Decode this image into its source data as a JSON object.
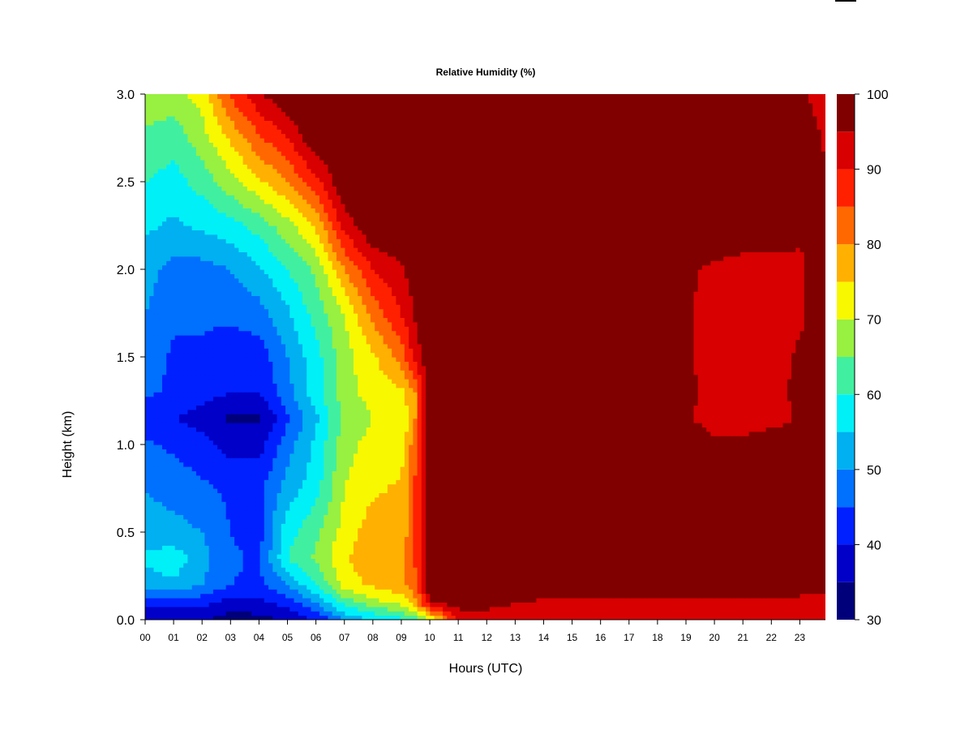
{
  "chart_data": {
    "type": "heatmap",
    "title": "Relative Humidity (%)",
    "xlabel": "Hours (UTC)",
    "ylabel": "Height (km)",
    "xlim": [
      0,
      23.9
    ],
    "ylim": [
      0.0,
      3.0
    ],
    "x_ticks": [
      "00",
      "01",
      "02",
      "03",
      "04",
      "05",
      "06",
      "07",
      "08",
      "09",
      "10",
      "11",
      "12",
      "13",
      "14",
      "15",
      "16",
      "17",
      "18",
      "19",
      "20",
      "21",
      "22",
      "23"
    ],
    "y_ticks": [
      "0.0",
      "0.5",
      "1.0",
      "1.5",
      "2.0",
      "2.5",
      "3.0"
    ],
    "colorbar": {
      "label": "",
      "range": [
        30,
        100
      ],
      "levels": [
        30,
        35,
        40,
        45,
        50,
        55,
        60,
        65,
        70,
        75,
        80,
        85,
        90,
        95,
        100
      ],
      "tick_labels": [
        "30",
        "40",
        "50",
        "60",
        "70",
        "80",
        "90",
        "100"
      ],
      "colors": [
        "#00007a",
        "#0000c8",
        "#0020ff",
        "#0070ff",
        "#00b0f0",
        "#00f0f8",
        "#40f0a0",
        "#98f040",
        "#f8f800",
        "#ffb000",
        "#ff6800",
        "#ff2000",
        "#d80000",
        "#800000"
      ]
    },
    "heights_km": [
      0.0,
      0.1,
      0.2,
      0.35,
      0.5,
      0.75,
      1.0,
      1.15,
      1.3,
      1.5,
      1.75,
      2.0,
      2.25,
      2.5,
      2.75,
      3.0
    ],
    "hours": [
      0,
      1,
      2,
      3,
      4,
      5,
      6,
      7,
      8,
      9,
      9.5,
      10,
      11,
      12,
      13,
      14,
      15,
      16,
      17,
      18,
      19,
      20,
      21,
      22,
      23,
      23.9
    ],
    "rh_percent": [
      [
        35,
        35,
        36,
        32,
        33,
        36,
        40,
        50,
        55,
        58,
        62,
        70,
        90,
        92,
        92,
        92,
        92,
        92,
        92,
        92,
        92,
        92,
        92,
        92,
        92,
        92
      ],
      [
        42,
        41,
        42,
        38,
        39,
        42,
        50,
        62,
        68,
        72,
        78,
        95,
        98,
        97,
        95,
        94,
        93,
        92,
        92,
        92,
        92,
        92,
        92,
        92,
        92,
        92
      ],
      [
        52,
        54,
        50,
        45,
        44,
        50,
        60,
        72,
        76,
        78,
        84,
        100,
        100,
        100,
        100,
        100,
        100,
        100,
        100,
        100,
        100,
        100,
        100,
        100,
        100,
        98
      ],
      [
        56,
        58,
        52,
        46,
        44,
        60,
        66,
        74,
        80,
        78,
        86,
        100,
        100,
        100,
        100,
        100,
        100,
        100,
        100,
        100,
        100,
        100,
        100,
        100,
        100,
        98
      ],
      [
        52,
        52,
        50,
        45,
        43,
        58,
        64,
        72,
        78,
        76,
        86,
        100,
        100,
        100,
        100,
        100,
        100,
        100,
        100,
        100,
        100,
        100,
        100,
        100,
        100,
        98
      ],
      [
        50,
        48,
        46,
        44,
        44,
        52,
        58,
        70,
        74,
        76,
        86,
        100,
        100,
        100,
        100,
        100,
        100,
        100,
        100,
        100,
        100,
        100,
        100,
        100,
        100,
        98
      ],
      [
        46,
        44,
        42,
        38,
        38,
        48,
        56,
        68,
        72,
        72,
        84,
        100,
        100,
        100,
        100,
        100,
        100,
        100,
        100,
        100,
        100,
        96,
        96,
        100,
        100,
        98
      ],
      [
        42,
        40,
        38,
        34,
        34,
        44,
        54,
        66,
        70,
        70,
        80,
        100,
        100,
        100,
        100,
        100,
        100,
        100,
        100,
        96,
        96,
        92,
        92,
        92,
        96,
        98
      ],
      [
        46,
        44,
        42,
        40,
        40,
        48,
        58,
        68,
        72,
        74,
        80,
        100,
        100,
        100,
        100,
        100,
        100,
        100,
        100,
        100,
        96,
        94,
        94,
        94,
        96,
        98
      ],
      [
        48,
        44,
        44,
        42,
        42,
        50,
        58,
        68,
        74,
        82,
        92,
        100,
        100,
        100,
        100,
        100,
        100,
        100,
        100,
        100,
        96,
        92,
        92,
        92,
        96,
        98
      ],
      [
        50,
        46,
        46,
        46,
        48,
        54,
        62,
        70,
        82,
        90,
        96,
        100,
        100,
        100,
        100,
        100,
        100,
        100,
        100,
        100,
        96,
        92,
        92,
        92,
        94,
        98
      ],
      [
        52,
        48,
        48,
        50,
        54,
        60,
        66,
        80,
        90,
        94,
        98,
        100,
        100,
        100,
        100,
        100,
        100,
        100,
        100,
        100,
        96,
        94,
        92,
        92,
        94,
        98
      ],
      [
        56,
        54,
        56,
        58,
        62,
        68,
        76,
        92,
        100,
        100,
        100,
        100,
        100,
        100,
        100,
        100,
        100,
        100,
        100,
        100,
        100,
        100,
        100,
        100,
        96,
        96
      ],
      [
        60,
        58,
        62,
        68,
        74,
        80,
        88,
        100,
        100,
        100,
        100,
        100,
        100,
        100,
        100,
        100,
        100,
        100,
        100,
        100,
        100,
        100,
        100,
        100,
        100,
        96
      ],
      [
        64,
        62,
        68,
        76,
        84,
        90,
        100,
        100,
        100,
        100,
        100,
        100,
        100,
        100,
        100,
        100,
        100,
        100,
        100,
        100,
        100,
        100,
        100,
        100,
        100,
        94
      ],
      [
        68,
        68,
        72,
        86,
        94,
        100,
        100,
        100,
        100,
        100,
        100,
        100,
        100,
        100,
        100,
        100,
        100,
        100,
        100,
        100,
        100,
        100,
        100,
        100,
        96,
        92
      ]
    ]
  }
}
